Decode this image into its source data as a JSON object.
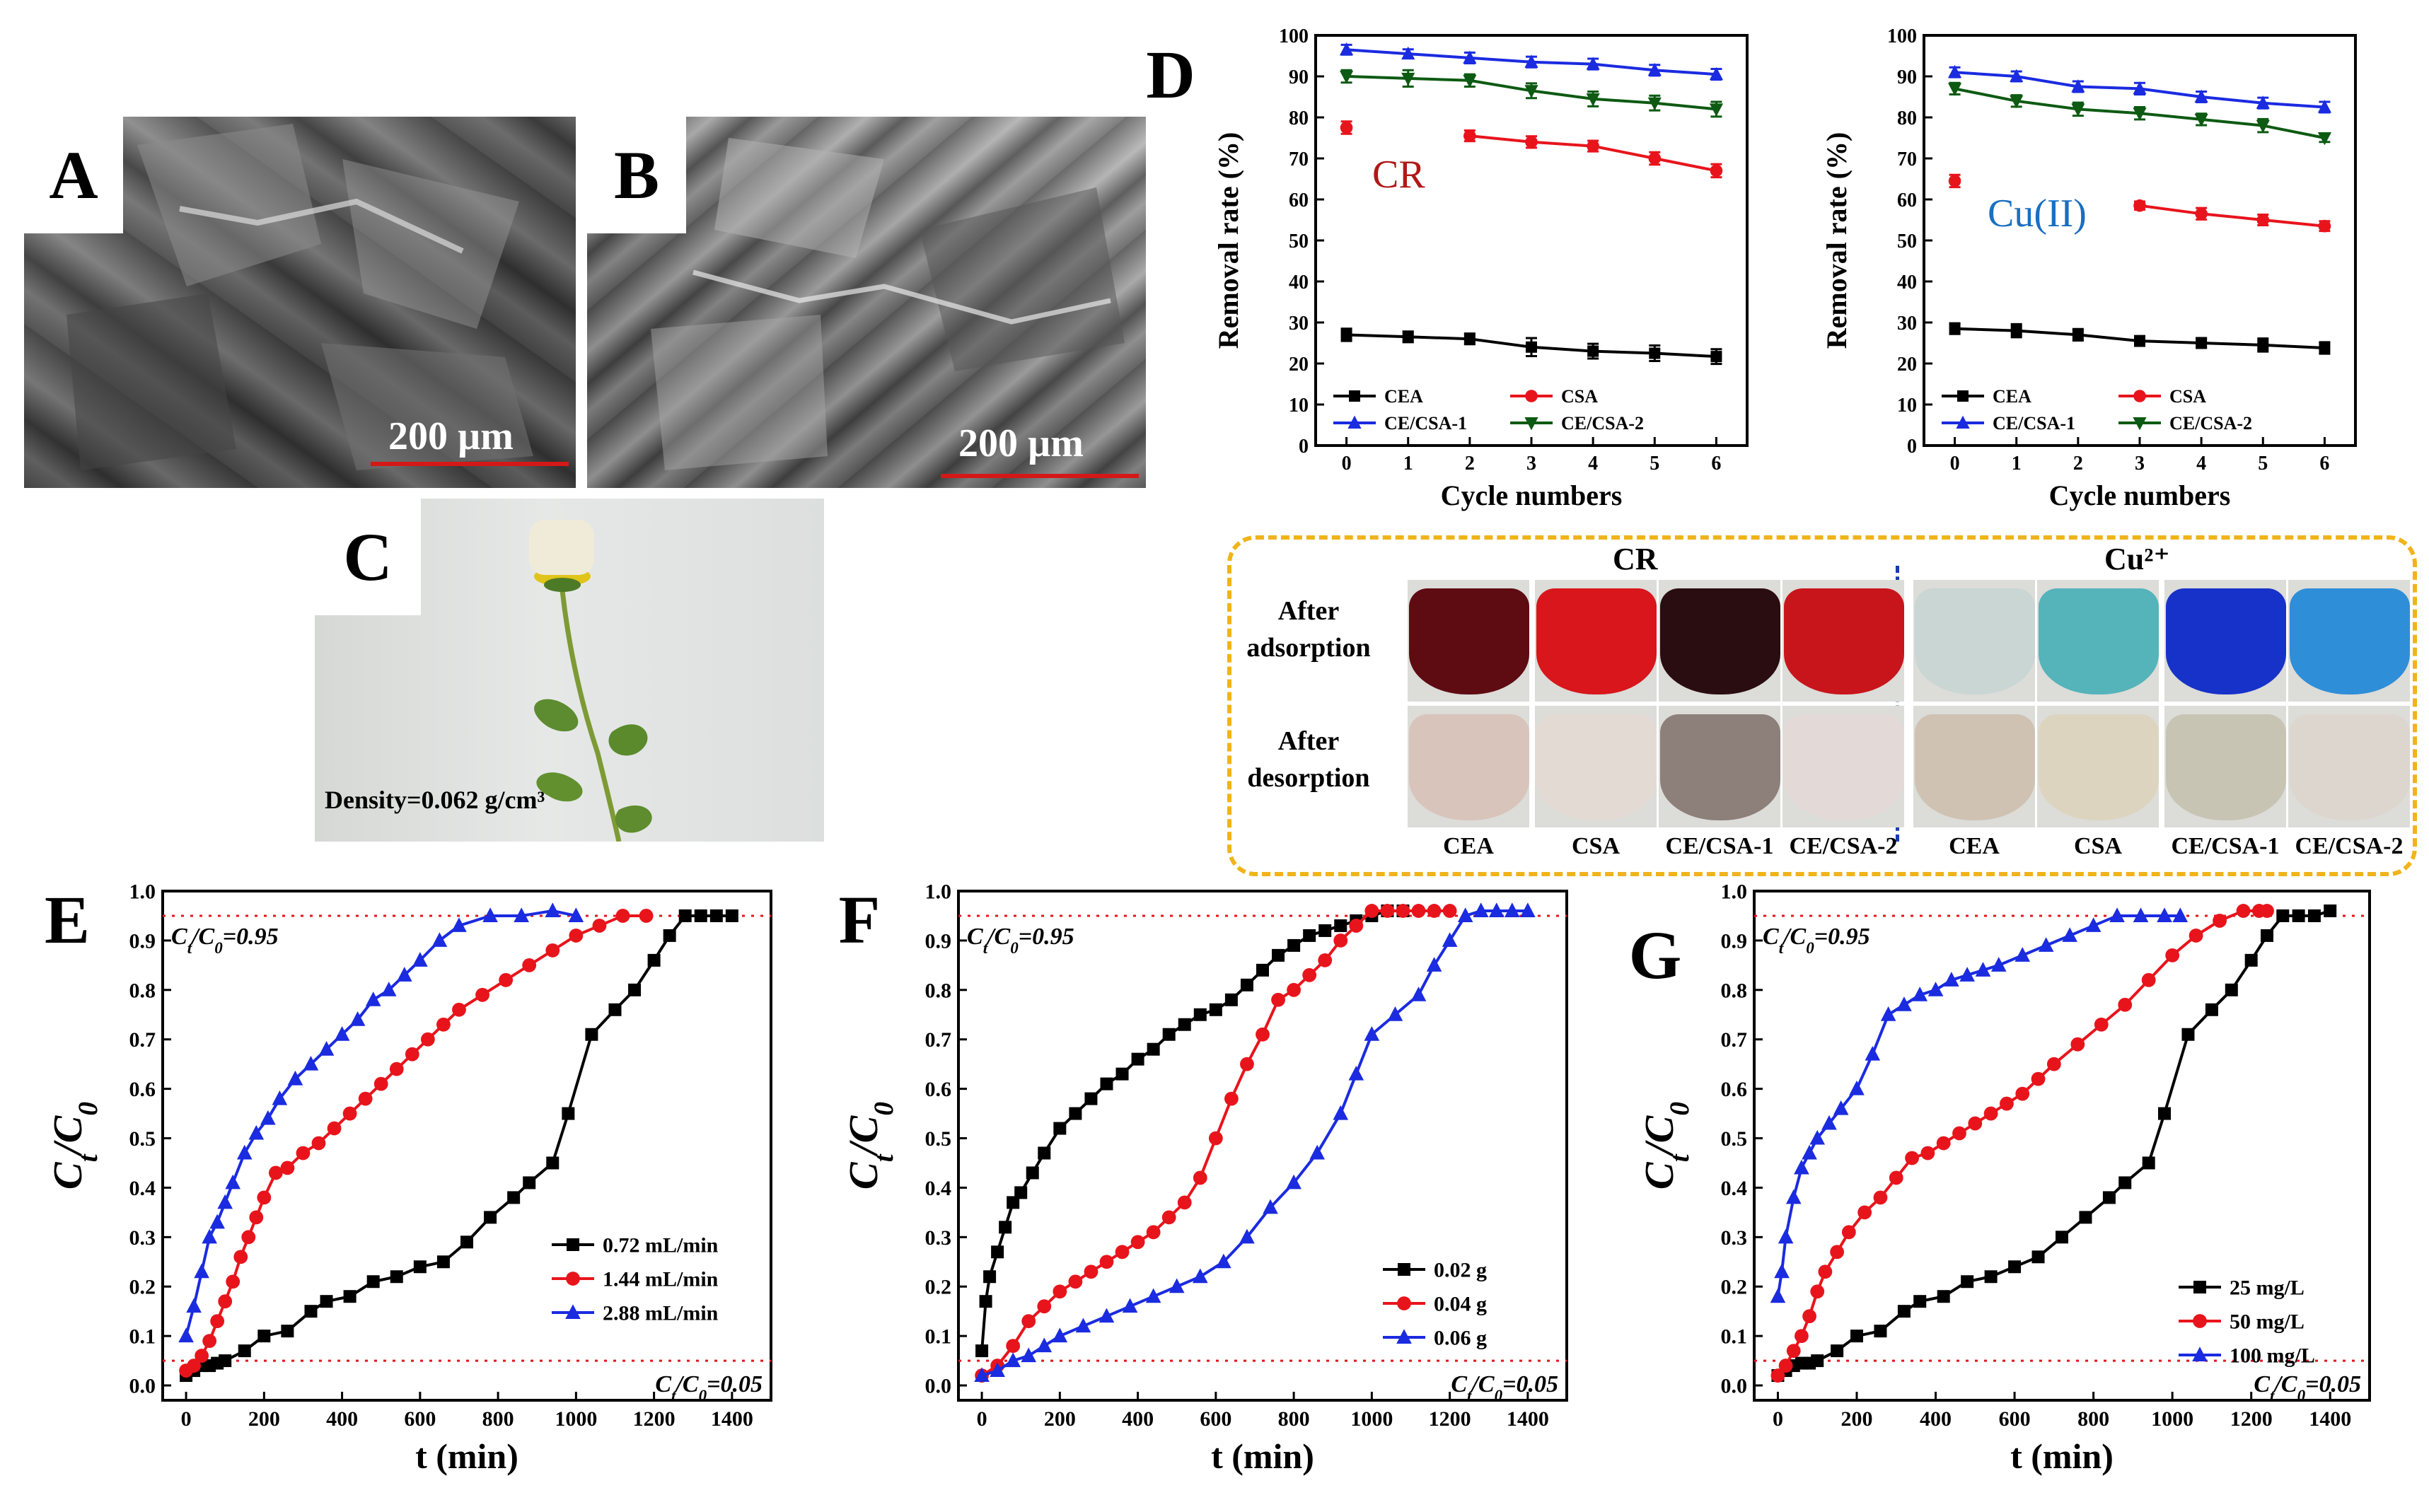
{
  "panels": {
    "A": {
      "letter": "A",
      "scale_label": "200 µm"
    },
    "B": {
      "letter": "B",
      "scale_label": "200 µm"
    },
    "C": {
      "letter": "C",
      "density_label": "Density=0.062 g/cm³"
    },
    "D": {
      "letter": "D"
    },
    "E": {
      "letter": "E"
    },
    "F": {
      "letter": "F"
    },
    "G": {
      "letter": "G"
    }
  },
  "adsorption_photos": {
    "group_titles": [
      "CR",
      "Cu²⁺"
    ],
    "row_labels": [
      [
        "After",
        "adsorption"
      ],
      [
        "After",
        "desorption"
      ]
    ],
    "column_labels": [
      "CEA",
      "CSA",
      "CE/CSA-1",
      "CE/CSA-2",
      "CEA",
      "CSA",
      "CE/CSA-1",
      "CE/CSA-2"
    ],
    "colors": {
      "after_adsorption": [
        "#5e0b12",
        "#d8161b",
        "#2a0d10",
        "#c8151b",
        "#c9d6d3",
        "#55b3ba",
        "#1732c8",
        "#2f8ed8"
      ],
      "after_desorption": [
        "#d8c4bb",
        "#e4dad4",
        "#8d7f79",
        "#e3d9d6",
        "#cfc2b3",
        "#ddd4c0",
        "#c8c4b4",
        "#ddd6cf"
      ]
    }
  },
  "chart_data": [
    {
      "id": "D-CR",
      "type": "line",
      "annotation": "CR",
      "xlabel": "Cycle numbers",
      "ylabel": "Removal rate (%)",
      "xlim": [
        -0.5,
        6.5
      ],
      "ylim": [
        0,
        100
      ],
      "xticks": [
        0,
        1,
        2,
        3,
        4,
        5,
        6
      ],
      "yticks": [
        0,
        10,
        20,
        30,
        40,
        50,
        60,
        70,
        80,
        90,
        100
      ],
      "x": [
        0,
        1,
        2,
        3,
        4,
        5,
        6
      ],
      "series": [
        {
          "name": "CEA",
          "color": "#000000",
          "marker": "square",
          "values": [
            27,
            26.5,
            26,
            24,
            23,
            22.5,
            21.7
          ],
          "errors": [
            1.5,
            1.3,
            1.3,
            2.2,
            1.8,
            1.9,
            1.8
          ]
        },
        {
          "name": "CSA",
          "color": "#e8141c",
          "marker": "circle",
          "values": [
            77.5,
            null,
            75.5,
            74,
            73,
            70,
            67
          ],
          "errors": [
            1.5,
            0,
            1.3,
            1.4,
            1.3,
            1.5,
            1.6
          ]
        },
        {
          "name": "CE/CSA-1",
          "color": "#1a2be0",
          "marker": "triangle-up",
          "values": [
            96.5,
            95.5,
            94.5,
            93.5,
            93,
            91.5,
            90.5
          ],
          "errors": [
            1.2,
            1.1,
            1.3,
            1.3,
            1.3,
            1.3,
            1.3
          ]
        },
        {
          "name": "CE/CSA-2",
          "color": "#0d5a12",
          "marker": "triangle-down",
          "values": [
            90,
            89.5,
            89,
            86.5,
            84.5,
            83.5,
            82
          ],
          "errors": [
            1.5,
            2.0,
            1.5,
            1.8,
            1.8,
            1.8,
            1.8
          ]
        }
      ]
    },
    {
      "id": "D-Cu",
      "type": "line",
      "annotation": "Cu(II)",
      "xlabel": "Cycle numbers",
      "ylabel": "Removal rate (%)",
      "xlim": [
        -0.5,
        6.5
      ],
      "ylim": [
        0,
        100
      ],
      "xticks": [
        0,
        1,
        2,
        3,
        4,
        5,
        6
      ],
      "yticks": [
        0,
        10,
        20,
        30,
        40,
        50,
        60,
        70,
        80,
        90,
        100
      ],
      "x": [
        0,
        1,
        2,
        3,
        4,
        5,
        6
      ],
      "series": [
        {
          "name": "CEA",
          "color": "#000000",
          "marker": "square",
          "values": [
            28.5,
            28,
            27,
            25.5,
            25,
            24.5,
            23.8
          ],
          "errors": [
            1.3,
            1.6,
            1.4,
            1.2,
            1.2,
            1.6,
            1.4
          ]
        },
        {
          "name": "CSA",
          "color": "#e8141c",
          "marker": "circle",
          "values": [
            64.5,
            null,
            null,
            58.5,
            56.5,
            55,
            53.5
          ],
          "errors": [
            1.5,
            0,
            0,
            1.0,
            1.4,
            1.3,
            1.2
          ]
        },
        {
          "name": "CE/CSA-1",
          "color": "#1a2be0",
          "marker": "triangle-up",
          "values": [
            91,
            90,
            87.5,
            87,
            85,
            83.5,
            82.5
          ],
          "errors": [
            1.2,
            1.2,
            1.3,
            1.4,
            1.3,
            1.3,
            1.3
          ]
        },
        {
          "name": "CE/CSA-2",
          "color": "#0d5a12",
          "marker": "triangle-down",
          "values": [
            87,
            84,
            82,
            81,
            79.5,
            78,
            75
          ],
          "errors": [
            1.4,
            1.4,
            1.6,
            1.5,
            1.4,
            1.6,
            1.0
          ]
        }
      ]
    },
    {
      "id": "E",
      "type": "line",
      "xlabel": "t (min)",
      "ylabel": "Ct/C0",
      "xlim": [
        -60,
        1500
      ],
      "ylim": [
        -0.03,
        1.0
      ],
      "xticks": [
        0,
        200,
        400,
        600,
        800,
        1000,
        1200,
        1400
      ],
      "yticks": [
        0.0,
        0.1,
        0.2,
        0.3,
        0.4,
        0.5,
        0.6,
        0.7,
        0.8,
        0.9,
        1.0
      ],
      "hlines": [
        0.95,
        0.05
      ],
      "annotations": {
        "upper": "Ct/C0=0.95",
        "lower": "Ct/C0=0.05"
      },
      "series": [
        {
          "name": "0.72 mL/min",
          "color": "#000000",
          "marker": "square",
          "x": [
            0,
            20,
            40,
            60,
            80,
            100,
            150,
            200,
            260,
            320,
            360,
            420,
            480,
            540,
            600,
            660,
            720,
            780,
            840,
            880,
            940,
            980,
            1040,
            1100,
            1150,
            1200,
            1240,
            1280,
            1320,
            1360,
            1400
          ],
          "y": [
            0.02,
            0.03,
            0.04,
            0.04,
            0.045,
            0.05,
            0.07,
            0.1,
            0.11,
            0.15,
            0.17,
            0.18,
            0.21,
            0.22,
            0.24,
            0.25,
            0.29,
            0.34,
            0.38,
            0.41,
            0.45,
            0.55,
            0.71,
            0.76,
            0.8,
            0.86,
            0.91,
            0.95,
            0.95,
            0.95,
            0.95
          ]
        },
        {
          "name": "1.44 mL/min",
          "color": "#e8141c",
          "marker": "circle",
          "x": [
            0,
            20,
            40,
            60,
            80,
            100,
            120,
            140,
            160,
            180,
            200,
            230,
            260,
            300,
            340,
            380,
            420,
            460,
            500,
            540,
            580,
            620,
            660,
            700,
            760,
            820,
            880,
            940,
            1000,
            1060,
            1120,
            1180
          ],
          "y": [
            0.03,
            0.04,
            0.06,
            0.09,
            0.13,
            0.17,
            0.21,
            0.26,
            0.3,
            0.34,
            0.38,
            0.43,
            0.44,
            0.47,
            0.49,
            0.52,
            0.55,
            0.58,
            0.61,
            0.64,
            0.67,
            0.7,
            0.73,
            0.76,
            0.79,
            0.82,
            0.85,
            0.88,
            0.91,
            0.93,
            0.95,
            0.95
          ]
        },
        {
          "name": "2.88 mL/min",
          "color": "#1a2be0",
          "marker": "triangle-up",
          "x": [
            0,
            20,
            40,
            60,
            80,
            100,
            120,
            150,
            180,
            210,
            240,
            280,
            320,
            360,
            400,
            440,
            480,
            520,
            560,
            600,
            650,
            700,
            780,
            860,
            940,
            1000
          ],
          "y": [
            0.1,
            0.16,
            0.23,
            0.3,
            0.33,
            0.37,
            0.41,
            0.47,
            0.51,
            0.54,
            0.58,
            0.62,
            0.65,
            0.68,
            0.71,
            0.74,
            0.78,
            0.8,
            0.83,
            0.86,
            0.9,
            0.93,
            0.95,
            0.95,
            0.96,
            0.95
          ]
        }
      ]
    },
    {
      "id": "F",
      "type": "line",
      "xlabel": "t (min)",
      "ylabel": "Ct/C0",
      "xlim": [
        -60,
        1500
      ],
      "ylim": [
        -0.03,
        1.0
      ],
      "xticks": [
        0,
        200,
        400,
        600,
        800,
        1000,
        1200,
        1400
      ],
      "yticks": [
        0.0,
        0.1,
        0.2,
        0.3,
        0.4,
        0.5,
        0.6,
        0.7,
        0.8,
        0.9,
        1.0
      ],
      "hlines": [
        0.95,
        0.05
      ],
      "annotations": {
        "upper": "Ct/C0=0.95",
        "lower": "Ct/C0=0.05"
      },
      "series": [
        {
          "name": "0.02 g",
          "color": "#000000",
          "marker": "square",
          "x": [
            0,
            10,
            20,
            40,
            60,
            80,
            100,
            130,
            160,
            200,
            240,
            280,
            320,
            360,
            400,
            440,
            480,
            520,
            560,
            600,
            640,
            680,
            720,
            760,
            800,
            840,
            880,
            920,
            960,
            1000,
            1040,
            1080
          ],
          "y": [
            0.07,
            0.17,
            0.22,
            0.27,
            0.32,
            0.37,
            0.39,
            0.43,
            0.47,
            0.52,
            0.55,
            0.58,
            0.61,
            0.63,
            0.66,
            0.68,
            0.71,
            0.73,
            0.75,
            0.76,
            0.78,
            0.81,
            0.84,
            0.87,
            0.89,
            0.91,
            0.92,
            0.93,
            0.94,
            0.95,
            0.96,
            0.96
          ]
        },
        {
          "name": "0.04 g",
          "color": "#e8141c",
          "marker": "circle",
          "x": [
            0,
            40,
            80,
            120,
            160,
            200,
            240,
            280,
            320,
            360,
            400,
            440,
            480,
            520,
            560,
            600,
            640,
            680,
            720,
            760,
            800,
            840,
            880,
            920,
            960,
            1000,
            1040,
            1080,
            1120,
            1160,
            1200
          ],
          "y": [
            0.02,
            0.04,
            0.08,
            0.13,
            0.16,
            0.19,
            0.21,
            0.23,
            0.25,
            0.27,
            0.29,
            0.31,
            0.34,
            0.37,
            0.42,
            0.5,
            0.58,
            0.65,
            0.71,
            0.78,
            0.8,
            0.83,
            0.86,
            0.9,
            0.93,
            0.96,
            0.96,
            0.96,
            0.96,
            0.96,
            0.96
          ]
        },
        {
          "name": "0.06 g",
          "color": "#1a2be0",
          "marker": "triangle-up",
          "x": [
            0,
            40,
            80,
            120,
            160,
            200,
            260,
            320,
            380,
            440,
            500,
            560,
            620,
            680,
            740,
            800,
            860,
            920,
            960,
            1000,
            1060,
            1120,
            1160,
            1200,
            1240,
            1280,
            1320,
            1360,
            1400
          ],
          "y": [
            0.02,
            0.03,
            0.05,
            0.06,
            0.08,
            0.1,
            0.12,
            0.14,
            0.16,
            0.18,
            0.2,
            0.22,
            0.25,
            0.3,
            0.36,
            0.41,
            0.47,
            0.55,
            0.63,
            0.71,
            0.75,
            0.79,
            0.85,
            0.9,
            0.95,
            0.96,
            0.96,
            0.96,
            0.96
          ]
        }
      ]
    },
    {
      "id": "G",
      "type": "line",
      "xlabel": "t (min)",
      "ylabel": "Ct/C0",
      "xlim": [
        -60,
        1500
      ],
      "ylim": [
        -0.03,
        1.0
      ],
      "xticks": [
        0,
        200,
        400,
        600,
        800,
        1000,
        1200,
        1400
      ],
      "yticks": [
        0.0,
        0.1,
        0.2,
        0.3,
        0.4,
        0.5,
        0.6,
        0.7,
        0.8,
        0.9,
        1.0
      ],
      "hlines": [
        0.95,
        0.05
      ],
      "annotations": {
        "upper": "Ct/C0=0.95",
        "lower": "Ct/C0=0.05"
      },
      "series": [
        {
          "name": "25  mg/L",
          "color": "#000000",
          "marker": "square",
          "x": [
            0,
            20,
            40,
            60,
            80,
            100,
            150,
            200,
            260,
            320,
            360,
            420,
            480,
            540,
            600,
            660,
            720,
            780,
            840,
            880,
            940,
            980,
            1040,
            1100,
            1150,
            1200,
            1240,
            1280,
            1320,
            1360,
            1400
          ],
          "y": [
            0.02,
            0.03,
            0.04,
            0.045,
            0.045,
            0.05,
            0.07,
            0.1,
            0.11,
            0.15,
            0.17,
            0.18,
            0.21,
            0.22,
            0.24,
            0.26,
            0.3,
            0.34,
            0.38,
            0.41,
            0.45,
            0.55,
            0.71,
            0.76,
            0.8,
            0.86,
            0.91,
            0.95,
            0.95,
            0.95,
            0.96
          ]
        },
        {
          "name": "50  mg/L",
          "color": "#e8141c",
          "marker": "circle",
          "x": [
            0,
            20,
            40,
            60,
            80,
            100,
            120,
            150,
            180,
            220,
            260,
            300,
            340,
            380,
            420,
            460,
            500,
            540,
            580,
            620,
            660,
            700,
            760,
            820,
            880,
            940,
            1000,
            1060,
            1120,
            1180,
            1220,
            1240
          ],
          "y": [
            0.02,
            0.04,
            0.07,
            0.1,
            0.14,
            0.19,
            0.23,
            0.27,
            0.31,
            0.35,
            0.38,
            0.42,
            0.46,
            0.47,
            0.49,
            0.51,
            0.53,
            0.55,
            0.57,
            0.59,
            0.62,
            0.65,
            0.69,
            0.73,
            0.77,
            0.82,
            0.87,
            0.91,
            0.94,
            0.96,
            0.96,
            0.96
          ]
        },
        {
          "name": "100 mg/L",
          "color": "#1a2be0",
          "marker": "triangle-up",
          "x": [
            0,
            10,
            20,
            40,
            60,
            80,
            100,
            130,
            160,
            200,
            240,
            280,
            320,
            360,
            400,
            440,
            480,
            520,
            560,
            620,
            680,
            740,
            800,
            860,
            920,
            980,
            1020
          ],
          "y": [
            0.18,
            0.23,
            0.3,
            0.38,
            0.44,
            0.47,
            0.5,
            0.53,
            0.56,
            0.6,
            0.67,
            0.75,
            0.77,
            0.79,
            0.8,
            0.82,
            0.83,
            0.84,
            0.85,
            0.87,
            0.89,
            0.91,
            0.93,
            0.95,
            0.95,
            0.95,
            0.95
          ]
        }
      ]
    }
  ]
}
